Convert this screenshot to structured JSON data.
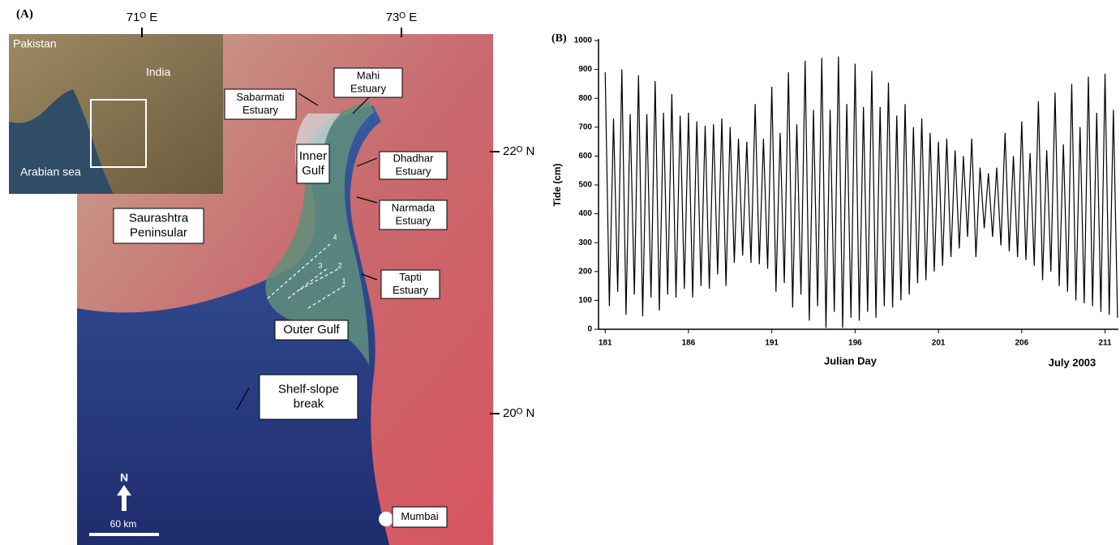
{
  "map": {
    "panel_label": "(A)",
    "lon_labels": [
      "71ᴼ E",
      "73ᴼ E"
    ],
    "lat_labels": [
      "22ᴼ N",
      "20ᴼ N"
    ],
    "inset_labels": [
      "Pakistan",
      "India",
      "Arabian sea"
    ],
    "boxes": [
      {
        "lines": [
          "Sabarmati",
          "Estuary"
        ]
      },
      {
        "lines": [
          "Mahi",
          "Estuary"
        ]
      },
      {
        "lines": [
          "Inner",
          "Gulf"
        ]
      },
      {
        "lines": [
          "Dhadhar",
          "Estuary"
        ]
      },
      {
        "lines": [
          "Narmada",
          "Estuary"
        ]
      },
      {
        "lines": [
          "Saurashtra",
          "Peninsular"
        ]
      },
      {
        "lines": [
          "Tapti",
          "Estuary"
        ]
      },
      {
        "lines": [
          "Outer Gulf"
        ]
      },
      {
        "lines": [
          "Shelf-slope",
          "break"
        ]
      },
      {
        "lines": [
          "Mumbai"
        ]
      }
    ],
    "transect_labels": [
      "4",
      "3",
      "2",
      "1"
    ],
    "north": "N",
    "scale": "60 km"
  },
  "chart_data": {
    "type": "line",
    "panel_label": "(B)",
    "ylabel": "Tide (cm)",
    "xlabel": "Julian Day",
    "annotation": "July 2003",
    "color": "#000000",
    "xlim": [
      180.6,
      211.8
    ],
    "ylim": [
      0,
      1000
    ],
    "xticks": [
      181,
      186,
      191,
      196,
      201,
      206,
      211
    ],
    "yticks": [
      0,
      100,
      200,
      300,
      400,
      500,
      600,
      700,
      800,
      900,
      1000
    ],
    "x": [
      181,
      181.25,
      181.5,
      181.75,
      182,
      182.25,
      182.5,
      182.75,
      183,
      183.25,
      183.5,
      183.75,
      184,
      184.25,
      184.5,
      184.75,
      185,
      185.25,
      185.5,
      185.75,
      186,
      186.25,
      186.5,
      186.75,
      187,
      187.25,
      187.5,
      187.75,
      188,
      188.25,
      188.5,
      188.75,
      189,
      189.25,
      189.5,
      189.75,
      190,
      190.25,
      190.5,
      190.75,
      191,
      191.25,
      191.5,
      191.75,
      192,
      192.25,
      192.5,
      192.75,
      193,
      193.25,
      193.5,
      193.75,
      194,
      194.25,
      194.5,
      194.75,
      195,
      195.25,
      195.5,
      195.75,
      196,
      196.25,
      196.5,
      196.75,
      197,
      197.25,
      197.5,
      197.75,
      198,
      198.25,
      198.5,
      198.75,
      199,
      199.25,
      199.5,
      199.75,
      200,
      200.25,
      200.5,
      200.75,
      201,
      201.25,
      201.5,
      201.75,
      202,
      202.25,
      202.5,
      202.75,
      203,
      203.25,
      203.5,
      203.75,
      204,
      204.25,
      204.5,
      204.75,
      205,
      205.25,
      205.5,
      205.75,
      206,
      206.25,
      206.5,
      206.75,
      207,
      207.25,
      207.5,
      207.75,
      208,
      208.25,
      208.5,
      208.75,
      209,
      209.25,
      209.5,
      209.75,
      210,
      210.25,
      210.5,
      210.75,
      211,
      211.25,
      211.5,
      211.75
    ],
    "values": [
      890,
      80,
      730,
      130,
      900,
      50,
      745,
      120,
      880,
      45,
      745,
      110,
      860,
      65,
      750,
      120,
      815,
      110,
      740,
      140,
      750,
      110,
      720,
      150,
      705,
      140,
      710,
      190,
      730,
      150,
      700,
      230,
      660,
      255,
      650,
      230,
      780,
      225,
      660,
      210,
      840,
      130,
      680,
      160,
      890,
      75,
      710,
      120,
      930,
      30,
      760,
      80,
      940,
      5,
      760,
      60,
      945,
      5,
      780,
      40,
      920,
      30,
      770,
      60,
      895,
      40,
      770,
      80,
      855,
      75,
      740,
      100,
      780,
      120,
      700,
      160,
      730,
      170,
      680,
      200,
      650,
      220,
      660,
      250,
      620,
      280,
      600,
      320,
      660,
      250,
      560,
      350,
      540,
      320,
      560,
      290,
      680,
      270,
      600,
      250,
      720,
      240,
      610,
      220,
      790,
      170,
      620,
      200,
      820,
      150,
      640,
      130,
      850,
      100,
      700,
      90,
      875,
      80,
      750,
      60,
      885,
      50,
      760,
      40
    ]
  }
}
